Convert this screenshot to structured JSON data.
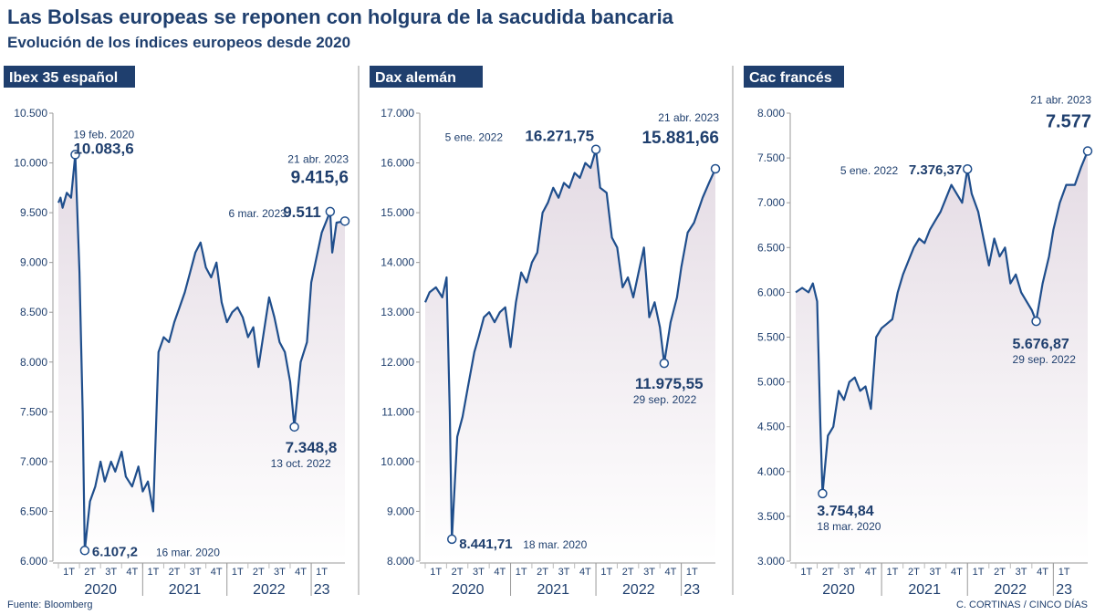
{
  "title": "Las Bolsas europeas se reponen con holgura de la sacudida bancaria",
  "subtitle": "Evolución de los índices europeos desde 2020",
  "source": "Fuente: Bloomberg",
  "credit": "C. CORTINAS / CINCO DÍAS",
  "colors": {
    "line": "#1f4e8c",
    "label_bg": "#1f3f6e",
    "text": "#1f3f6e",
    "fill_top": "#e4dbe4",
    "grid": "#cccccc"
  },
  "quarter_labels": [
    "1T",
    "2T",
    "3T",
    "4T",
    "1T",
    "2T",
    "3T",
    "4T",
    "1T",
    "2T",
    "3T",
    "4T",
    "1T"
  ],
  "year_labels": [
    "2020",
    "2021",
    "2022",
    "23"
  ],
  "chart_data": [
    {
      "type": "line",
      "label": "Ibex 35 español",
      "ylim": [
        6000,
        10500
      ],
      "yticks": [
        "6.000",
        "6.500",
        "7.000",
        "7.500",
        "8.000",
        "8.500",
        "9.000",
        "9.500",
        "10.000",
        "10.500"
      ],
      "x": [
        0,
        0.1,
        0.2,
        0.4,
        0.6,
        0.8,
        1.0,
        1.15,
        1.25,
        1.5,
        1.75,
        2.0,
        2.2,
        2.5,
        2.7,
        3.0,
        3.2,
        3.5,
        3.8,
        4.0,
        4.25,
        4.5,
        4.75,
        5.0,
        5.25,
        5.5,
        5.75,
        6.0,
        6.25,
        6.5,
        6.75,
        7.0,
        7.25,
        7.5,
        7.75,
        8.0,
        8.25,
        8.5,
        8.75,
        9.0,
        9.25,
        9.5,
        9.75,
        10.0,
        10.25,
        10.5,
        10.75,
        11.0,
        11.2,
        11.5,
        11.8,
        12.0,
        12.2,
        12.5,
        12.9,
        13.0,
        13.2,
        13.6
      ],
      "y": [
        9600,
        9650,
        9550,
        9700,
        9650,
        10083.6,
        8900,
        7500,
        6107.2,
        6600,
        6750,
        7000,
        6800,
        7000,
        6900,
        7100,
        6850,
        6750,
        6950,
        6700,
        6800,
        6500,
        8100,
        8250,
        8200,
        8400,
        8550,
        8700,
        8900,
        9100,
        9200,
        8950,
        8850,
        9000,
        8600,
        8400,
        8500,
        8550,
        8450,
        8250,
        8350,
        7950,
        8300,
        8650,
        8450,
        8200,
        8100,
        7800,
        7348.8,
        8000,
        8200,
        8800,
        9000,
        9300,
        9511,
        9100,
        9400,
        9415.6
      ],
      "annotations": [
        {
          "date": "19 feb. 2020",
          "value": "10.083,6"
        },
        {
          "date": "16 mar. 2020",
          "value": "6.107,2"
        },
        {
          "date": "13 oct. 2022",
          "value": "7.348,8"
        },
        {
          "date": "6 mar. 2023",
          "value": "9.511"
        },
        {
          "date": "21 abr. 2023",
          "value": "9.415,6"
        }
      ]
    },
    {
      "type": "line",
      "label": "Dax alemán",
      "ylim": [
        8000,
        17000
      ],
      "yticks": [
        "8.000",
        "9.000",
        "10.000",
        "11.000",
        "12.000",
        "13.000",
        "14.000",
        "15.000",
        "16.000",
        "17.000"
      ],
      "x": [
        0,
        0.2,
        0.5,
        0.8,
        1.0,
        1.15,
        1.25,
        1.5,
        1.75,
        2.0,
        2.3,
        2.5,
        2.75,
        3.0,
        3.25,
        3.5,
        3.75,
        4.0,
        4.25,
        4.5,
        4.75,
        5.0,
        5.25,
        5.5,
        5.75,
        6.0,
        6.25,
        6.5,
        6.75,
        7.0,
        7.25,
        7.5,
        7.75,
        8.0,
        8.2,
        8.5,
        8.75,
        9.0,
        9.25,
        9.5,
        9.75,
        10.0,
        10.25,
        10.5,
        10.75,
        11.0,
        11.2,
        11.5,
        11.8,
        12.0,
        12.3,
        12.6,
        13.0,
        13.3,
        13.6
      ],
      "y": [
        13200,
        13400,
        13500,
        13300,
        13700,
        11000,
        8441.71,
        10500,
        10900,
        11500,
        12200,
        12500,
        12900,
        13000,
        12800,
        13000,
        13100,
        12300,
        13200,
        13800,
        13600,
        14000,
        14200,
        15000,
        15200,
        15500,
        15300,
        15600,
        15500,
        15800,
        15700,
        16000,
        15900,
        16271.75,
        15500,
        15400,
        14500,
        14300,
        13500,
        13700,
        13300,
        13800,
        14300,
        12900,
        13200,
        12700,
        11975.55,
        12800,
        13300,
        13900,
        14600,
        14800,
        15300,
        15600,
        15881.66
      ],
      "annotations": [
        {
          "date": "5 ene. 2022",
          "value": "16.271,75"
        },
        {
          "date": "18 mar. 2020",
          "value": "8.441,71"
        },
        {
          "date": "29 sep. 2022",
          "value": "11.975,55"
        },
        {
          "date": "21 abr. 2023",
          "value": "15.881,66"
        }
      ]
    },
    {
      "type": "line",
      "label": "Cac francés",
      "ylim": [
        3000,
        8000
      ],
      "yticks": [
        "3.000",
        "3.500",
        "4.000",
        "4.500",
        "5.000",
        "5.500",
        "6.000",
        "6.500",
        "7.000",
        "7.500",
        "8.000"
      ],
      "x": [
        0,
        0.3,
        0.6,
        0.8,
        1.0,
        1.15,
        1.25,
        1.5,
        1.75,
        2.0,
        2.25,
        2.5,
        2.75,
        3.0,
        3.25,
        3.5,
        3.75,
        4.0,
        4.25,
        4.5,
        4.75,
        5.0,
        5.25,
        5.5,
        5.75,
        6.0,
        6.25,
        6.5,
        6.75,
        7.0,
        7.25,
        7.5,
        7.75,
        8.0,
        8.2,
        8.5,
        8.75,
        9.0,
        9.25,
        9.5,
        9.75,
        10.0,
        10.25,
        10.5,
        10.75,
        11.0,
        11.2,
        11.5,
        11.8,
        12.0,
        12.3,
        12.6,
        13.0,
        13.3,
        13.6
      ],
      "y": [
        6000,
        6050,
        6000,
        6100,
        5900,
        4500,
        3754.84,
        4400,
        4500,
        4900,
        4800,
        5000,
        5050,
        4900,
        4950,
        4700,
        5500,
        5600,
        5650,
        5700,
        6000,
        6200,
        6350,
        6500,
        6600,
        6550,
        6700,
        6800,
        6900,
        7050,
        7200,
        7100,
        7000,
        7376.37,
        7100,
        6900,
        6600,
        6300,
        6600,
        6400,
        6500,
        6100,
        6200,
        6000,
        5900,
        5800,
        5676.87,
        6100,
        6400,
        6700,
        7000,
        7200,
        7200,
        7400,
        7577
      ],
      "annotations": [
        {
          "date": "5 ene. 2022",
          "value": "7.376,37"
        },
        {
          "date": "18 mar. 2020",
          "value": "3.754,84"
        },
        {
          "date": "29 sep. 2022",
          "value": "5.676,87"
        },
        {
          "date": "21 abr. 2023",
          "value": "7.577"
        }
      ]
    }
  ]
}
